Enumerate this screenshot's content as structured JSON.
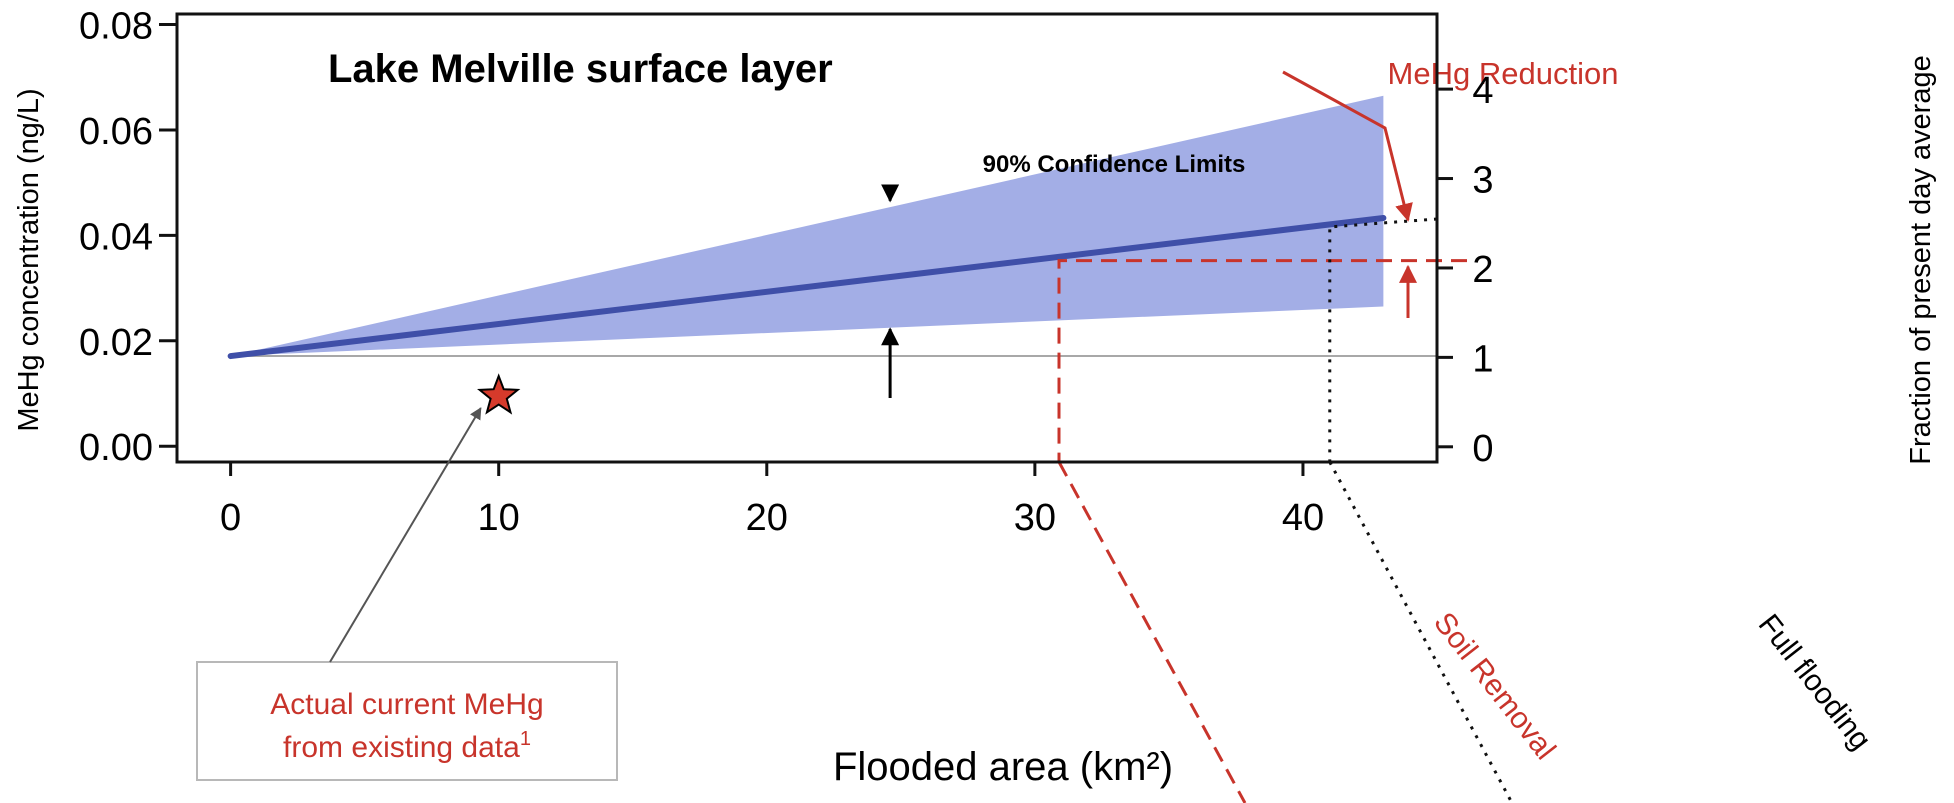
{
  "chart_data": {
    "type": "area",
    "title": "Lake Melville surface layer",
    "xlabel": "Flooded area (km²)",
    "ylabel": "MeHg concentration (ng/L)",
    "y2label": "Fraction of present day average",
    "xlim": [
      -2,
      45
    ],
    "ylim": [
      -0.003,
      0.082
    ],
    "y2lim": [
      -0.17,
      4.84
    ],
    "x_ticks": [
      0,
      10,
      20,
      30,
      40
    ],
    "x_tick_labels": [
      "0",
      "10",
      "20",
      "30",
      "40"
    ],
    "y_ticks": [
      0.0,
      0.02,
      0.04,
      0.06,
      0.08
    ],
    "y_tick_labels": [
      "0.00",
      "0.02",
      "0.04",
      "0.06",
      "0.08"
    ],
    "y2_ticks": [
      0,
      1,
      2,
      3,
      4
    ],
    "y2_tick_labels": [
      "0",
      "1",
      "2",
      "3",
      "4"
    ],
    "grid": false,
    "series": [
      {
        "kind": "line",
        "x": [
          0,
          43
        ],
        "y": [
          0.0171,
          0.0433
        ],
        "color": "#3f4fa8"
      },
      {
        "kind": "band",
        "x": [
          0,
          43
        ],
        "lower": [
          0.0171,
          0.0265
        ],
        "upper": [
          0.0171,
          0.0665
        ],
        "color": "#a3aee6"
      }
    ],
    "baseline": {
      "y": 0.0171,
      "color": "#a8a8a8"
    },
    "current_point": {
      "x": 10,
      "y": 0.0095,
      "color": "#d63a2b"
    },
    "soil_removal": {
      "x": 30.9,
      "y": 0.0352
    },
    "full_flooding": {
      "x": 41,
      "y": 0.0416
    },
    "annotations": {
      "confidence": "90% Confidence Limits",
      "reduction": "MeHg Reduction",
      "soil_removal": "Soil Removal",
      "full_flooding": "Full flooding",
      "current_line1": "Actual current MeHg",
      "current_line2": "from existing data",
      "current_sup": "1"
    },
    "colors": {
      "band": "#a3aee6",
      "line": "#3f4fa8",
      "red": "#c8342b",
      "axis": "#111111"
    }
  }
}
